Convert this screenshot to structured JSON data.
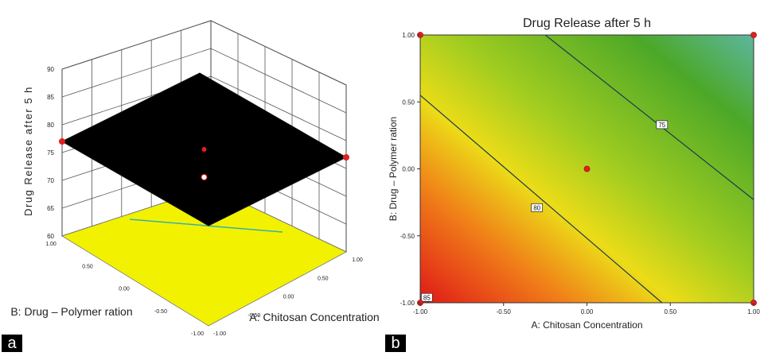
{
  "panel_labels": [
    "a",
    "b"
  ],
  "chart_data": [
    {
      "type": "surface",
      "panel": "a",
      "title": "",
      "zlabel": "Drug Release after 5 h",
      "xlabel": "A: Chitosan Concentration",
      "ylabel": "B: Drug – Polymer ration",
      "z_ticks": [
        "90",
        "85",
        "80",
        "75",
        "70",
        "65",
        "60"
      ],
      "x_ticks": [
        "-1.00",
        "-0.50",
        "0.00",
        "0.50",
        "1.00"
      ],
      "y_ticks": [
        "1.00",
        "0.50",
        "0.00",
        "-0.50",
        "-1.00"
      ],
      "zlim": [
        60,
        90
      ],
      "xlim": [
        -1,
        1
      ],
      "ylim": [
        -1,
        1
      ],
      "surface_corners": [
        {
          "x": -1,
          "y": 1,
          "z": 77
        },
        {
          "x": 1,
          "y": 1,
          "z": 76
        },
        {
          "x": 1,
          "y": -1,
          "z": 77
        },
        {
          "x": -1,
          "y": -1,
          "z": 78
        }
      ],
      "design_points": [
        {
          "x": -1,
          "y": 1,
          "z": 77
        },
        {
          "x": 1,
          "y": -1,
          "z": 77
        },
        {
          "x": 0,
          "y": 0,
          "z": 77
        },
        {
          "x": 0,
          "y": 0,
          "z": 72
        }
      ],
      "surface_color": "#000000",
      "floor_color": "#f2f200",
      "point_color": "#e02020"
    },
    {
      "type": "contour",
      "panel": "b",
      "title": "Drug Release after 5 h",
      "xlabel": "A: Chitosan Concentration",
      "ylabel": "B: Drug – Polymer ration",
      "x_ticks": [
        "-1.00",
        "-0.50",
        "0.00",
        "0.50",
        "1.00"
      ],
      "y_ticks": [
        "-1.00",
        "-0.50",
        "0.00",
        "0.50",
        "1.00"
      ],
      "x_tick_values": [
        -1,
        -0.5,
        0,
        0.5,
        1
      ],
      "y_tick_values": [
        -1,
        -0.5,
        0,
        0.5,
        1
      ],
      "xlim": [
        -1,
        1
      ],
      "ylim": [
        -1,
        1
      ],
      "contours": [
        {
          "label": "75",
          "points": [
            [
              -0.25,
              1
            ],
            [
              1,
              -0.23
            ]
          ],
          "label_at": [
            0.45,
            0.33
          ]
        },
        {
          "label": "80",
          "points": [
            [
              -1,
              0.55
            ],
            [
              0.45,
              -1
            ]
          ],
          "label_at": [
            -0.3,
            -0.29
          ]
        },
        {
          "label": "85",
          "points": [
            [
              -1,
              -0.95
            ],
            [
              -0.95,
              -1
            ]
          ],
          "label_at": [
            -0.96,
            -0.96
          ]
        }
      ],
      "design_points": [
        {
          "x": -1,
          "y": 1
        },
        {
          "x": 1,
          "y": 1
        },
        {
          "x": -1,
          "y": -1
        },
        {
          "x": 1,
          "y": -1
        },
        {
          "x": 0,
          "y": 0
        }
      ],
      "color_scale": [
        "#e01818",
        "#f08018",
        "#ecdc18",
        "#a0cc20",
        "#4ca828",
        "#5cb6a0"
      ],
      "point_color": "#e02020"
    }
  ]
}
